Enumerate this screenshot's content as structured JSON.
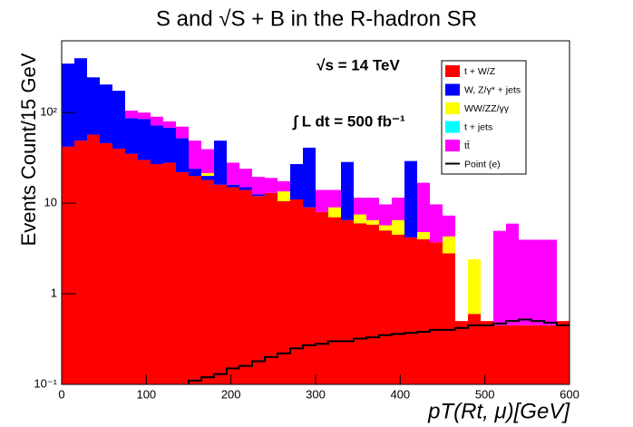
{
  "chart_data": {
    "type": "stacked-histogram",
    "title": "S and √S + B  in the R-hadron SR",
    "annotations": [
      "√s = 14 TeV",
      "∫ L dt = 500 fb⁻¹"
    ],
    "x_label": "pT(Rt, μ)[GeV]",
    "y_label": "Events Count/15 GeV",
    "log_y": true,
    "bins": [
      0,
      15,
      30,
      45,
      60,
      75,
      90,
      105,
      120,
      135,
      150,
      165,
      180,
      195,
      210,
      225,
      240,
      255,
      270,
      285,
      300,
      315,
      330,
      345,
      360,
      375,
      390,
      405,
      420,
      435,
      450,
      465,
      480,
      495,
      510,
      525,
      540,
      555,
      570,
      585,
      600
    ],
    "xlim": [
      0,
      600
    ],
    "xticks": [
      0,
      100,
      200,
      300,
      400,
      500,
      600
    ],
    "ylim": [
      0.1,
      620
    ],
    "yticks": [
      {
        "value": 0.1,
        "label": "10⁻¹"
      },
      1,
      10,
      {
        "value": 100,
        "label": "10²"
      }
    ],
    "legend": "top-right",
    "series": [
      {
        "name": "t + W/Z",
        "color": "#ff0000",
        "draw": "stack",
        "values": [
          42,
          49,
          57,
          46,
          40,
          35,
          30,
          27,
          28,
          22,
          20,
          18,
          16,
          15,
          14,
          12,
          13,
          10.5,
          11,
          9,
          8,
          7,
          6.5,
          6,
          5.8,
          5,
          4.5,
          4.2,
          4,
          3.7,
          2.8,
          0.5,
          0.6,
          0.5,
          0.45,
          0.45,
          0.45,
          0.45,
          0.45,
          0.5
        ]
      },
      {
        "name": "W, Z/γ* + jets",
        "color": "#0000ff",
        "draw": "stack",
        "values": [
          305,
          349,
          188,
          158,
          134,
          52,
          55,
          45,
          40,
          30,
          4,
          2,
          33,
          1,
          1,
          0.5,
          0,
          0,
          16,
          32,
          0,
          0,
          22,
          0,
          0,
          0,
          0,
          25,
          0,
          0,
          0,
          0,
          0,
          0,
          0,
          0,
          0,
          0,
          0,
          0
        ]
      },
      {
        "name": "WW/ZZ/γγ",
        "color": "#ffff00",
        "draw": "stack",
        "values": [
          0,
          0,
          0,
          0,
          0,
          0,
          0,
          0,
          0,
          0,
          0,
          1.5,
          0,
          0,
          0,
          0,
          0,
          3,
          0,
          0,
          0,
          2,
          0,
          1.5,
          0.7,
          0.7,
          2,
          0,
          0.8,
          0,
          1.5,
          0,
          1.8,
          0,
          0,
          0,
          0,
          0,
          0,
          0
        ]
      },
      {
        "name": "t + jets",
        "color": "#00ffff",
        "draw": "stack",
        "values": [
          0,
          0,
          0,
          0,
          0,
          0,
          0,
          0,
          0,
          0,
          0,
          0,
          0,
          0,
          0,
          0,
          0,
          0,
          0,
          0,
          0,
          0,
          0,
          0,
          0,
          0,
          0,
          0,
          0,
          0,
          0,
          0,
          0,
          0,
          0,
          0,
          0,
          0,
          0,
          0
        ]
      },
      {
        "name": "tt̄",
        "color": "#ff00ff",
        "draw": "stack",
        "values": [
          0,
          0,
          0,
          0,
          0,
          18,
          15,
          18,
          12,
          18,
          25,
          18,
          0,
          12,
          9,
          7,
          6,
          4,
          0,
          0,
          6,
          5,
          0,
          4,
          5,
          4,
          5,
          0,
          12,
          6,
          3,
          0,
          0,
          0,
          4.5,
          5.5,
          3.5,
          3.5,
          3.5,
          0
        ]
      },
      {
        "name": "Point (e)",
        "color": "#000000",
        "draw": "line",
        "values": [
          null,
          null,
          null,
          null,
          null,
          null,
          null,
          null,
          null,
          null,
          0.11,
          0.12,
          0.13,
          0.15,
          0.16,
          0.18,
          0.2,
          0.22,
          0.25,
          0.27,
          0.28,
          0.3,
          0.3,
          0.32,
          0.33,
          0.35,
          0.36,
          0.37,
          0.38,
          0.4,
          0.4,
          0.42,
          0.45,
          0.45,
          0.47,
          0.5,
          0.52,
          0.5,
          0.48,
          0.45
        ]
      }
    ]
  }
}
